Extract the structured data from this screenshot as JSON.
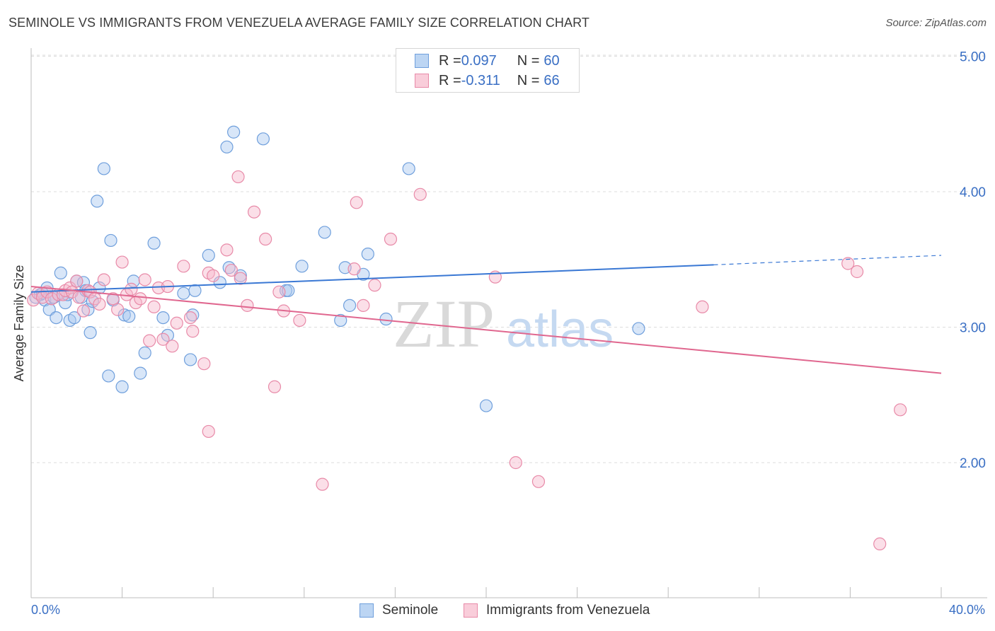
{
  "title": "SEMINOLE VS IMMIGRANTS FROM VENEZUELA AVERAGE FAMILY SIZE CORRELATION CHART",
  "source": "Source: ZipAtlas.com",
  "watermark": {
    "zip": "ZIP",
    "atlas": "atlas"
  },
  "legend_top": [
    {
      "r_label": "R = ",
      "r_value": "0.097",
      "n_label": "N = ",
      "n_value": "60"
    },
    {
      "r_label": "R = ",
      "r_value": "-0.311",
      "n_label": "N = ",
      "n_value": "66"
    }
  ],
  "colors": {
    "seminole_fill": "#a9c8ef",
    "seminole_stroke": "#6f9fdc",
    "seminole_line": "#3a78d4",
    "venezuela_fill": "#f6b8cb",
    "venezuela_stroke": "#e88aa8",
    "venezuela_line": "#e0678f",
    "axis_text": "#3a6fc4",
    "grid": "#dddddd"
  },
  "chart_data": {
    "type": "scatter",
    "title": "SEMINOLE VS IMMIGRANTS FROM VENEZUELA AVERAGE FAMILY SIZE CORRELATION CHART",
    "xlabel": "",
    "ylabel": "Average Family Size",
    "xlim": [
      0,
      40
    ],
    "ylim": [
      1.0,
      5.2
    ],
    "x_tick_labels": [
      "0.0%",
      "40.0%"
    ],
    "y_ticks": [
      2.0,
      3.0,
      4.0,
      5.0
    ],
    "y_tick_labels": [
      "2.00",
      "3.00",
      "4.00",
      "5.00"
    ],
    "grid": true,
    "legend_position": "bottom",
    "series": [
      {
        "name": "Seminole",
        "trend": {
          "x": [
            0,
            30
          ],
          "y": [
            3.26,
            3.46
          ],
          "dashed_extension_to": [
            40,
            3.53
          ]
        },
        "points": [
          [
            0.2,
            3.22
          ],
          [
            0.4,
            3.24
          ],
          [
            0.6,
            3.2
          ],
          [
            0.7,
            3.29
          ],
          [
            0.8,
            3.13
          ],
          [
            1.0,
            3.22
          ],
          [
            1.1,
            3.07
          ],
          [
            1.3,
            3.4
          ],
          [
            1.5,
            3.18
          ],
          [
            1.6,
            3.24
          ],
          [
            1.7,
            3.05
          ],
          [
            1.9,
            3.07
          ],
          [
            2.0,
            3.34
          ],
          [
            2.2,
            3.22
          ],
          [
            2.3,
            3.33
          ],
          [
            2.4,
            3.27
          ],
          [
            2.5,
            3.13
          ],
          [
            2.6,
            2.96
          ],
          [
            2.7,
            3.19
          ],
          [
            2.9,
            3.93
          ],
          [
            3.0,
            3.29
          ],
          [
            3.2,
            4.17
          ],
          [
            3.4,
            2.64
          ],
          [
            3.5,
            3.64
          ],
          [
            3.6,
            3.2
          ],
          [
            4.0,
            2.56
          ],
          [
            4.1,
            3.09
          ],
          [
            4.3,
            3.08
          ],
          [
            4.5,
            3.34
          ],
          [
            4.8,
            2.66
          ],
          [
            5.0,
            2.81
          ],
          [
            5.4,
            3.62
          ],
          [
            5.8,
            3.07
          ],
          [
            6.0,
            2.94
          ],
          [
            6.7,
            3.25
          ],
          [
            7.0,
            2.76
          ],
          [
            7.1,
            3.09
          ],
          [
            7.2,
            3.27
          ],
          [
            7.8,
            3.53
          ],
          [
            8.3,
            3.33
          ],
          [
            8.6,
            4.33
          ],
          [
            8.7,
            3.44
          ],
          [
            8.9,
            4.44
          ],
          [
            9.2,
            3.38
          ],
          [
            10.2,
            4.39
          ],
          [
            11.2,
            3.27
          ],
          [
            11.3,
            3.27
          ],
          [
            11.9,
            3.45
          ],
          [
            12.9,
            3.7
          ],
          [
            13.6,
            3.05
          ],
          [
            13.8,
            3.44
          ],
          [
            14.0,
            3.16
          ],
          [
            14.6,
            3.39
          ],
          [
            14.8,
            3.54
          ],
          [
            15.6,
            3.06
          ],
          [
            16.6,
            4.17
          ],
          [
            20.0,
            2.42
          ],
          [
            26.7,
            2.99
          ],
          [
            1.0,
            3.22
          ],
          [
            0.5,
            3.25
          ]
        ]
      },
      {
        "name": "Immigrants from Venezuela",
        "trend": {
          "x": [
            0,
            40
          ],
          "y": [
            3.3,
            2.66
          ]
        },
        "points": [
          [
            0.1,
            3.2
          ],
          [
            0.3,
            3.25
          ],
          [
            0.5,
            3.22
          ],
          [
            0.7,
            3.26
          ],
          [
            0.9,
            3.21
          ],
          [
            1.2,
            3.24
          ],
          [
            1.4,
            3.24
          ],
          [
            1.5,
            3.27
          ],
          [
            1.7,
            3.29
          ],
          [
            1.8,
            3.26
          ],
          [
            2.0,
            3.34
          ],
          [
            2.1,
            3.22
          ],
          [
            2.3,
            3.12
          ],
          [
            2.5,
            3.27
          ],
          [
            2.6,
            3.26
          ],
          [
            2.8,
            3.21
          ],
          [
            3.0,
            3.17
          ],
          [
            3.2,
            3.35
          ],
          [
            3.6,
            3.21
          ],
          [
            3.8,
            3.13
          ],
          [
            4.0,
            3.48
          ],
          [
            4.2,
            3.24
          ],
          [
            4.4,
            3.28
          ],
          [
            4.6,
            3.18
          ],
          [
            4.8,
            3.21
          ],
          [
            5.0,
            3.35
          ],
          [
            5.2,
            2.9
          ],
          [
            5.4,
            3.15
          ],
          [
            5.6,
            3.29
          ],
          [
            5.8,
            2.91
          ],
          [
            6.0,
            3.3
          ],
          [
            6.2,
            2.86
          ],
          [
            6.4,
            3.03
          ],
          [
            6.7,
            3.45
          ],
          [
            7.0,
            3.07
          ],
          [
            7.1,
            2.97
          ],
          [
            7.6,
            2.73
          ],
          [
            7.8,
            3.4
          ],
          [
            7.8,
            2.23
          ],
          [
            8.0,
            3.38
          ],
          [
            8.6,
            3.57
          ],
          [
            8.8,
            3.42
          ],
          [
            9.1,
            4.11
          ],
          [
            9.2,
            3.36
          ],
          [
            9.5,
            3.16
          ],
          [
            9.8,
            3.85
          ],
          [
            10.3,
            3.65
          ],
          [
            10.7,
            2.56
          ],
          [
            10.9,
            3.26
          ],
          [
            11.1,
            3.12
          ],
          [
            11.8,
            3.05
          ],
          [
            12.8,
            1.84
          ],
          [
            14.2,
            3.43
          ],
          [
            14.3,
            3.92
          ],
          [
            14.6,
            3.16
          ],
          [
            15.1,
            3.31
          ],
          [
            15.8,
            3.65
          ],
          [
            17.1,
            3.98
          ],
          [
            20.4,
            3.37
          ],
          [
            21.3,
            2.0
          ],
          [
            22.3,
            1.86
          ],
          [
            29.5,
            3.15
          ],
          [
            35.9,
            3.47
          ],
          [
            36.3,
            3.41
          ],
          [
            37.3,
            1.4
          ],
          [
            38.2,
            2.39
          ]
        ]
      }
    ]
  },
  "bottom_legend": [
    "Seminole",
    "Immigrants from Venezuela"
  ]
}
